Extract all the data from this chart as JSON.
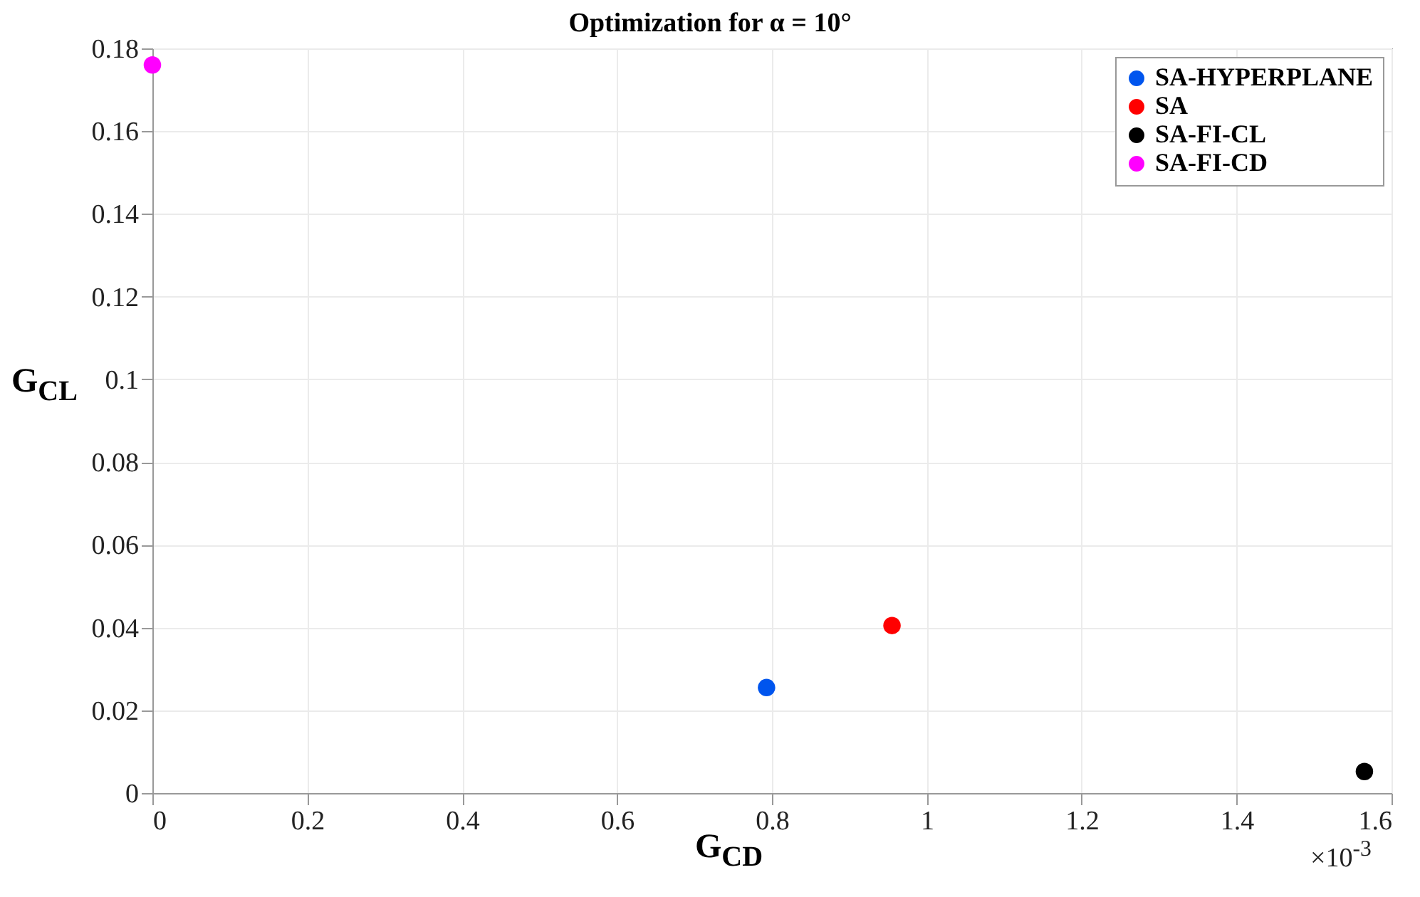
{
  "chart_data": {
    "type": "scatter",
    "title": "Optimization for α = 10°",
    "xlabel": "G$_{CD}$",
    "ylabel": "G$_{CL}$",
    "annotations": [
      "×10$^{-3}$"
    ],
    "xlim": [
      0,
      1.6
    ],
    "xticks": [
      0,
      0.2,
      0.4,
      0.6,
      0.8,
      1,
      1.2,
      1.4,
      1.6
    ],
    "ylim": [
      0,
      0.18
    ],
    "yticks": [
      0,
      0.02,
      0.04,
      0.06,
      0.08,
      0.1,
      0.12,
      0.14,
      0.16,
      0.18
    ],
    "grid": true,
    "legend": "top right",
    "marker": "circle",
    "series": [
      {
        "name": "SA-HYPERPLANE",
        "color": "#0055ee",
        "x": [
          0.793
        ],
        "values": [
          0.0255
        ]
      },
      {
        "name": "SA",
        "color": "#ff0000",
        "x": [
          0.955
        ],
        "values": [
          0.0405
        ]
      },
      {
        "name": "SA-FI-CL",
        "color": "#000000",
        "x": [
          1.565
        ],
        "values": [
          0.0052
        ]
      },
      {
        "name": "SA-FI-CD",
        "color": "#ff00ff",
        "x": [
          0
        ],
        "values": [
          0.176
        ]
      }
    ]
  }
}
